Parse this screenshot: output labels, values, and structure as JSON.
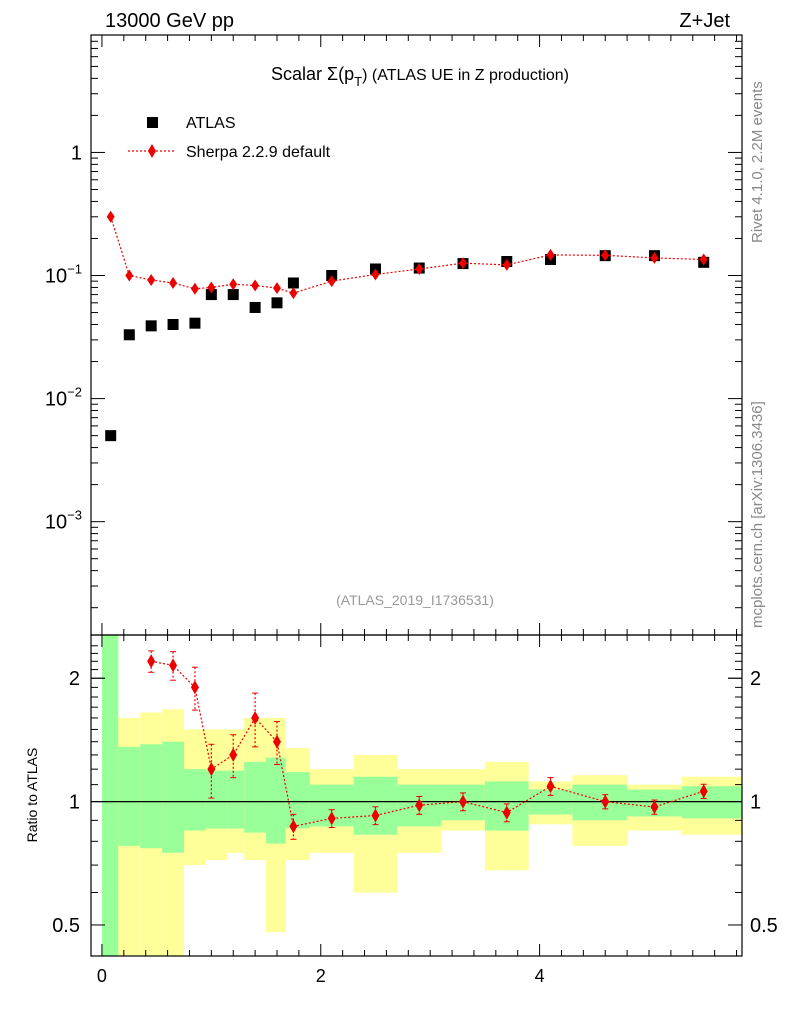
{
  "header": {
    "energy": "13000 GeV pp",
    "process": "Z+Jet"
  },
  "side": {
    "rivet": "Rivet 4.1.0,  2.2M events",
    "mcplots": "mcplots.cern.ch [arXiv:1306.3436]"
  },
  "chart_data": {
    "type": "scatter",
    "title": "Scalar Σ(p_T) (ATLAS UE in Z production)",
    "title_main": "Scalar Σ(p",
    "title_sub": "T",
    "title_tail": ") (ATLAS UE in Z production)",
    "analysis_id": "(ATLAS_2019_I1736531)",
    "xlim": [
      -0.1,
      5.85
    ],
    "x_ticks": [
      0,
      2,
      4
    ],
    "main": {
      "yscale": "log",
      "ylim": [
        0.00012,
        9.0
      ],
      "y_ticks": [
        {
          "v": 1,
          "base": "1",
          "exp": ""
        },
        {
          "v": 0.1,
          "base": "10",
          "exp": "−1"
        },
        {
          "v": 0.01,
          "base": "10",
          "exp": "−2"
        },
        {
          "v": 0.001,
          "base": "10",
          "exp": "−3"
        }
      ],
      "legend": [
        {
          "label": "ATLAS",
          "marker": "square"
        },
        {
          "label": "Sherpa 2.2.9 default",
          "marker": "diamond"
        }
      ],
      "x": [
        0.08,
        0.25,
        0.45,
        0.65,
        0.85,
        1.0,
        1.2,
        1.4,
        1.6,
        1.75,
        2.1,
        2.5,
        2.9,
        3.3,
        3.7,
        4.1,
        4.6,
        5.05,
        5.5
      ],
      "atlas": [
        0.005,
        0.033,
        0.039,
        0.04,
        0.041,
        0.07,
        0.07,
        0.055,
        0.06,
        0.087,
        0.1,
        0.113,
        0.115,
        0.125,
        0.13,
        0.135,
        0.145,
        0.145,
        0.128
      ],
      "sherpa": [
        0.3,
        0.1,
        0.092,
        0.087,
        0.078,
        0.08,
        0.085,
        0.083,
        0.079,
        0.072,
        0.09,
        0.102,
        0.113,
        0.126,
        0.122,
        0.147,
        0.146,
        0.139,
        0.135
      ]
    },
    "ratio": {
      "ylabel": "Ratio to ATLAS",
      "yscale": "log",
      "ylim": [
        0.42,
        2.55
      ],
      "y_ticks": [
        {
          "v": 0.5,
          "label": "0.5"
        },
        {
          "v": 1,
          "label": "1"
        },
        {
          "v": 2,
          "label": "2"
        }
      ],
      "x": [
        0.45,
        0.65,
        0.85,
        1.0,
        1.2,
        1.4,
        1.6,
        1.75,
        2.1,
        2.5,
        2.9,
        3.3,
        3.7,
        4.1,
        4.6,
        5.05,
        5.5
      ],
      "values": [
        2.2,
        2.15,
        1.9,
        1.2,
        1.3,
        1.6,
        1.4,
        0.87,
        0.91,
        0.925,
        0.98,
        1.0,
        0.94,
        1.09,
        1.0,
        0.97,
        1.06
      ],
      "err": [
        0.06,
        0.08,
        0.12,
        0.15,
        0.12,
        0.15,
        0.12,
        0.07,
        0.05,
        0.05,
        0.05,
        0.05,
        0.05,
        0.05,
        0.04,
        0.04,
        0.04
      ],
      "bands": [
        {
          "x0": 0.0,
          "x1": 0.15,
          "g_lo": 0.3,
          "g_hi": 3.0,
          "y_lo": 0.3,
          "y_hi": 3.0
        },
        {
          "x0": 0.15,
          "x1": 0.35,
          "g_lo": 0.78,
          "g_hi": 1.36,
          "y_lo": 0.4,
          "y_hi": 1.6
        },
        {
          "x0": 0.35,
          "x1": 0.55,
          "g_lo": 0.77,
          "g_hi": 1.38,
          "y_lo": 0.39,
          "y_hi": 1.65
        },
        {
          "x0": 0.55,
          "x1": 0.75,
          "g_lo": 0.75,
          "g_hi": 1.4,
          "y_lo": 0.35,
          "y_hi": 1.68
        },
        {
          "x0": 0.75,
          "x1": 0.95,
          "g_lo": 0.85,
          "g_hi": 1.2,
          "y_lo": 0.7,
          "y_hi": 1.5
        },
        {
          "x0": 0.95,
          "x1": 1.15,
          "g_lo": 0.86,
          "g_hi": 1.19,
          "y_lo": 0.72,
          "y_hi": 1.5
        },
        {
          "x0": 1.15,
          "x1": 1.3,
          "g_lo": 0.86,
          "g_hi": 1.19,
          "y_lo": 0.75,
          "y_hi": 1.5
        },
        {
          "x0": 1.3,
          "x1": 1.5,
          "g_lo": 0.84,
          "g_hi": 1.25,
          "y_lo": 0.72,
          "y_hi": 1.6
        },
        {
          "x0": 1.5,
          "x1": 1.68,
          "g_lo": 0.79,
          "g_hi": 1.28,
          "y_lo": 0.48,
          "y_hi": 1.6
        },
        {
          "x0": 1.68,
          "x1": 1.9,
          "g_lo": 0.86,
          "g_hi": 1.18,
          "y_lo": 0.72,
          "y_hi": 1.35
        },
        {
          "x0": 1.9,
          "x1": 2.3,
          "g_lo": 0.87,
          "g_hi": 1.1,
          "y_lo": 0.75,
          "y_hi": 1.2
        },
        {
          "x0": 2.3,
          "x1": 2.7,
          "g_lo": 0.83,
          "g_hi": 1.15,
          "y_lo": 0.6,
          "y_hi": 1.3
        },
        {
          "x0": 2.7,
          "x1": 3.1,
          "g_lo": 0.87,
          "g_hi": 1.1,
          "y_lo": 0.75,
          "y_hi": 1.2
        },
        {
          "x0": 3.1,
          "x1": 3.5,
          "g_lo": 0.9,
          "g_hi": 1.1,
          "y_lo": 0.85,
          "y_hi": 1.2
        },
        {
          "x0": 3.5,
          "x1": 3.9,
          "g_lo": 0.85,
          "g_hi": 1.12,
          "y_lo": 0.68,
          "y_hi": 1.25
        },
        {
          "x0": 3.9,
          "x1": 4.3,
          "g_lo": 0.93,
          "g_hi": 1.07,
          "y_lo": 0.88,
          "y_hi": 1.12
        },
        {
          "x0": 4.3,
          "x1": 4.8,
          "g_lo": 0.9,
          "g_hi": 1.1,
          "y_lo": 0.78,
          "y_hi": 1.16
        },
        {
          "x0": 4.8,
          "x1": 5.3,
          "g_lo": 0.92,
          "g_hi": 1.07,
          "y_lo": 0.85,
          "y_hi": 1.1
        },
        {
          "x0": 5.3,
          "x1": 5.85,
          "g_lo": 0.91,
          "g_hi": 1.09,
          "y_lo": 0.83,
          "y_hi": 1.15
        }
      ]
    }
  }
}
